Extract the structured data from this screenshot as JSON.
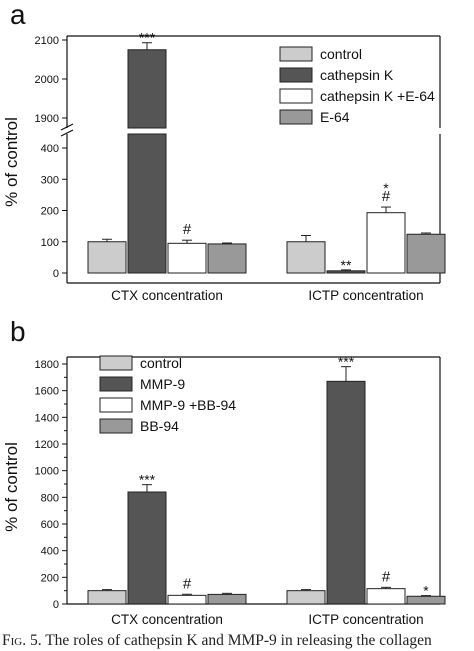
{
  "caption": {
    "figure_label": "Fig. 5.",
    "text": "The roles of cathepsin K and MMP-9 in releasing the collagen"
  },
  "chart_data": [
    {
      "panel_label": "a",
      "type": "bar",
      "ylabel": "% of control",
      "categories": [
        "CTX concentration",
        "ICTP concentration"
      ],
      "y_axis_broken": true,
      "lower_ylim": [
        -20,
        450
      ],
      "lower_ticks": [
        0,
        100,
        200,
        300,
        400
      ],
      "upper_ylim": [
        1860,
        2110
      ],
      "upper_ticks": [
        1900,
        2000,
        2100
      ],
      "legend_position": "top-right",
      "series": [
        {
          "name": "control",
          "color": "#cccccc",
          "values": [
            100,
            100
          ],
          "errors": [
            8,
            20
          ],
          "annotations": [
            "",
            ""
          ]
        },
        {
          "name": "cathepsin K",
          "color": "#555555",
          "values": [
            2075,
            7
          ],
          "errors": [
            18,
            3
          ],
          "annotations": [
            "***",
            "**"
          ]
        },
        {
          "name": "cathepsin K +E-64",
          "color": "#ffffff",
          "values": [
            95,
            193
          ],
          "errors": [
            10,
            18
          ],
          "annotations": [
            "#",
            "*\n#"
          ]
        },
        {
          "name": "E-64",
          "color": "#999999",
          "values": [
            93,
            124
          ],
          "errors": [
            3,
            4
          ],
          "annotations": [
            "",
            ""
          ]
        }
      ]
    },
    {
      "panel_label": "b",
      "type": "bar",
      "ylabel": "% of control",
      "categories": [
        "CTX concentration",
        "ICTP concentration"
      ],
      "ylim": [
        0,
        1850
      ],
      "ticks": [
        0,
        200,
        400,
        600,
        800,
        1000,
        1200,
        1400,
        1600,
        1800
      ],
      "legend_position": "top-left",
      "series": [
        {
          "name": "control",
          "color": "#cccccc",
          "values": [
            100,
            100
          ],
          "errors": [
            8,
            8
          ],
          "annotations": [
            "",
            ""
          ]
        },
        {
          "name": "MMP-9",
          "color": "#555555",
          "values": [
            840,
            1670
          ],
          "errors": [
            55,
            110
          ],
          "annotations": [
            "***",
            "***"
          ]
        },
        {
          "name": "MMP-9 +BB-94",
          "color": "#ffffff",
          "values": [
            65,
            115
          ],
          "errors": [
            8,
            10
          ],
          "annotations": [
            "#",
            "#"
          ]
        },
        {
          "name": "BB-94",
          "color": "#999999",
          "values": [
            72,
            58
          ],
          "errors": [
            8,
            5
          ],
          "annotations": [
            "",
            "*"
          ]
        }
      ]
    }
  ]
}
